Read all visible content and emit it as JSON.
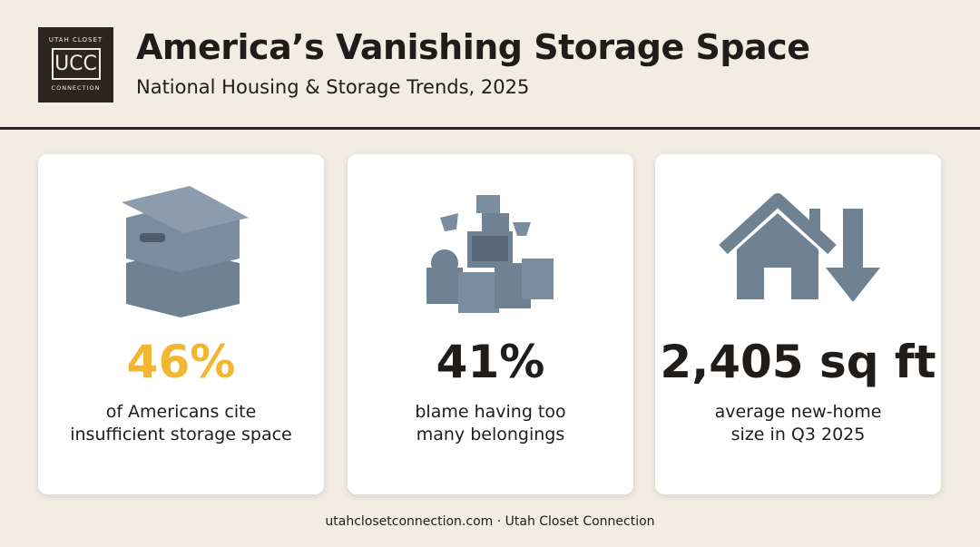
{
  "header": {
    "logo": {
      "top": "UTAH CLOSET",
      "mark": "UCC",
      "bottom": "CONNECTION"
    },
    "title": "America’s Vanishing Storage Space",
    "subtitle": "National Housing & Storage Trends, 2025"
  },
  "cards": [
    {
      "stat": "46%",
      "lines": [
        "of Americans cite",
        "insufficient storage space"
      ]
    },
    {
      "stat": "41%",
      "lines": [
        "blame having too",
        "many belongings"
      ]
    },
    {
      "stat": "2,405 sq ft",
      "lines": [
        "average new-home",
        "size in Q3 2025"
      ]
    }
  ],
  "footer": "utahclosetconnection.com · Utah Closet Connection"
}
